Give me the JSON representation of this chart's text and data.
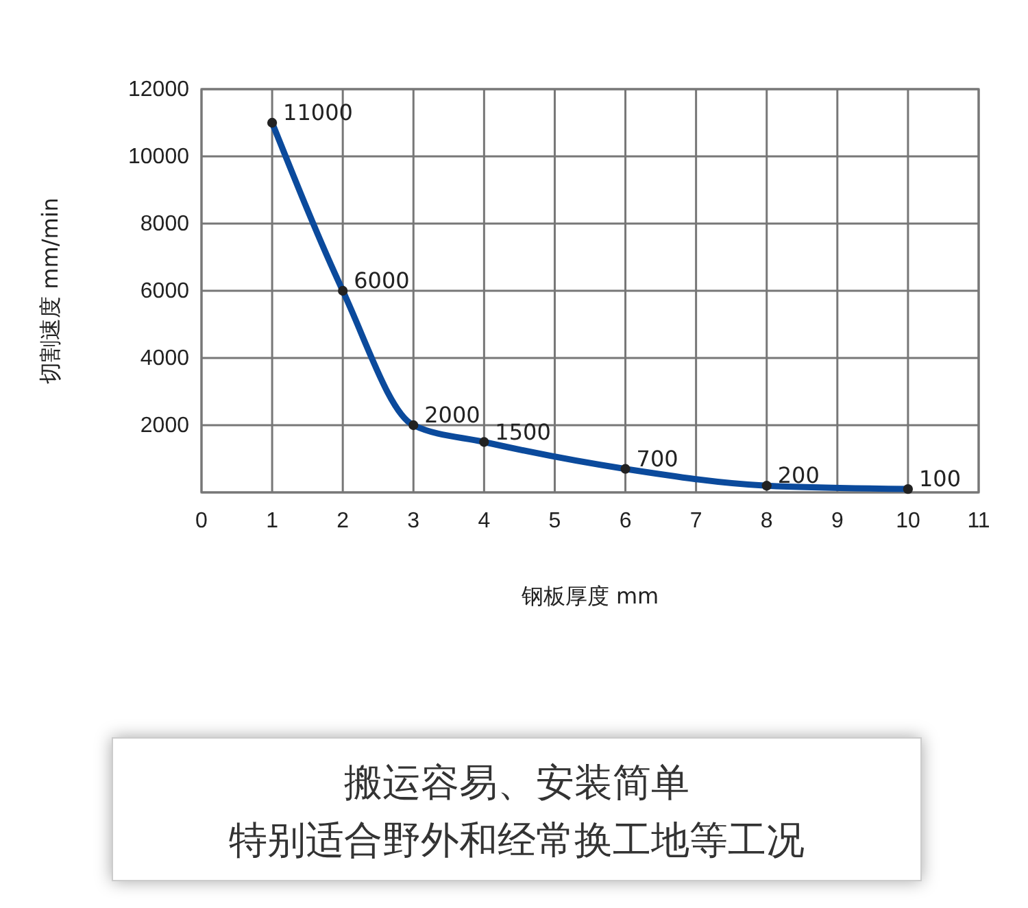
{
  "chart_data": {
    "type": "line",
    "xlabel": "钢板厚度 mm",
    "ylabel": "切割速度 mm/min",
    "x": [
      1,
      2,
      3,
      4,
      6,
      8,
      10
    ],
    "series": [
      {
        "color": "#0b4a9c",
        "values": [
          11000,
          6000,
          2000,
          1500,
          700,
          200,
          100
        ]
      }
    ],
    "xlim": [
      0,
      11
    ],
    "xticks": [
      0,
      1,
      2,
      3,
      4,
      5,
      6,
      7,
      8,
      9,
      10,
      11
    ],
    "ylim": [
      0,
      12000
    ],
    "yticks": [
      {
        "value": 0,
        "label": null
      },
      2000,
      4000,
      6000,
      8000,
      10000,
      12000
    ],
    "grid": true,
    "marker": "circle",
    "line_style": "solid",
    "data_labels": true,
    "annotations": [
      "搬运容易、安装简单",
      "特别适合野外和经常换工地等工况"
    ]
  }
}
